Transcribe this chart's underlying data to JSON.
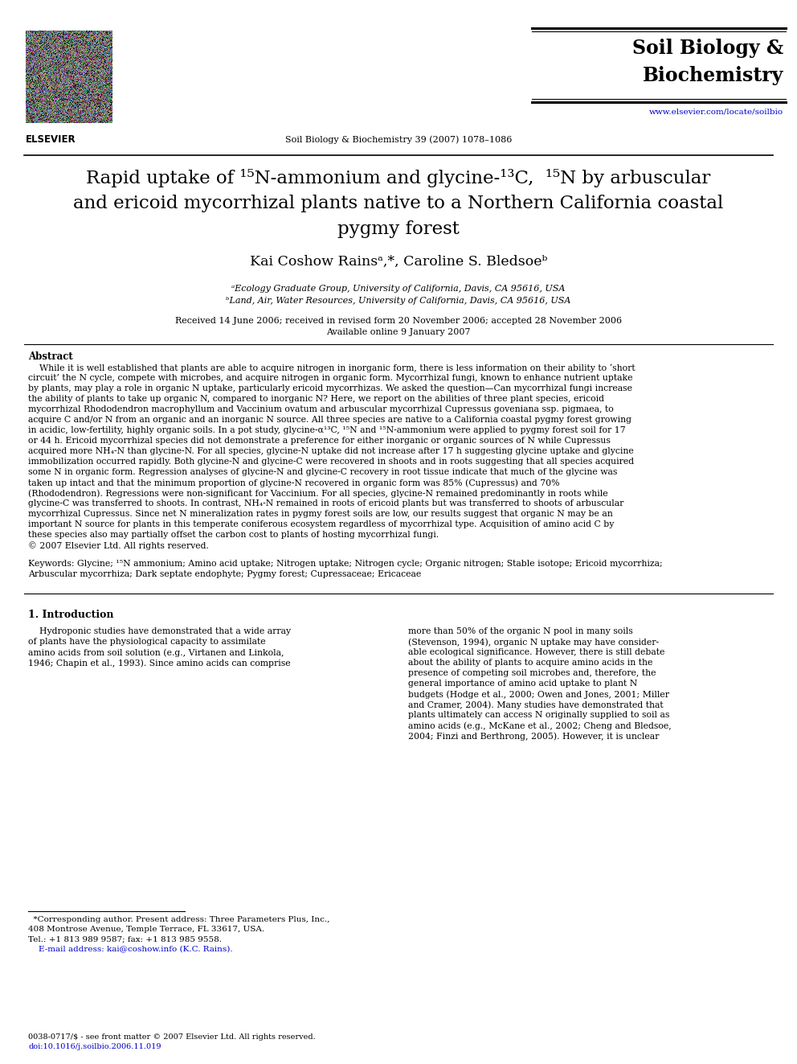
{
  "bg_color": "#ffffff",
  "header": {
    "journal_name_line1": "Soil Biology &",
    "journal_name_line2": "Biochemistry",
    "journal_info": "Soil Biology & Biochemistry 39 (2007) 1078–1086",
    "journal_url": "www.elsevier.com/locate/soilbio",
    "elsevier_label": "ELSEVIER"
  },
  "separator_color": "#000000",
  "text_color": "#000000",
  "url_color": "#0000cc",
  "link_color": "#0000cc"
}
